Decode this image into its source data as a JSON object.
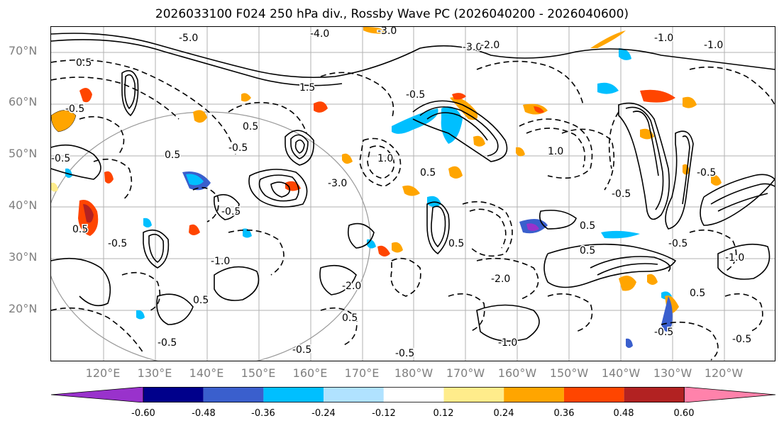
{
  "title": "2026033100 F024 250 hPa div., Rossby Wave PC (2026040200 - 2026040600)",
  "lat_labels": [
    "70°N",
    "60°N",
    "50°N",
    "40°N",
    "30°N",
    "20°N"
  ],
  "lon_labels": [
    "120°E",
    "130°E",
    "140°E",
    "150°E",
    "160°E",
    "170°E",
    "180°W",
    "170°W",
    "160°W",
    "150°W",
    "140°W",
    "130°W",
    "120°W"
  ],
  "contour_labels": [
    "-5.0",
    "-4.0",
    "-3.0",
    "-3.0",
    "-2.0",
    "-1.0",
    "0.5",
    "-0.5",
    "1.5",
    "-0.5",
    "0.5",
    "-0.5",
    "1.0",
    "0.5",
    "-3.0",
    "0.5",
    "1.0",
    "-0.5",
    "0.5",
    "-0.5",
    "-1.0",
    "-2.0",
    "0.5",
    "-0.5",
    "-0.5",
    "-1.0",
    "-0.5",
    "0.5",
    "-0.5",
    "0.5",
    "-0.5",
    "-0.5",
    "-2.0",
    "0.5",
    "-0.5",
    "0.5",
    "-1.0",
    "-0.5",
    "-0.5",
    "-1.0",
    "0.5"
  ],
  "colorbar": {
    "colors": [
      "#9932cc",
      "#00008b",
      "#3a5fcd",
      "#00bfff",
      "#b0e2ff",
      "#ffffff",
      "#ffec8b",
      "#ffa500",
      "#ff4500",
      "#b22222",
      "#ff82ab"
    ],
    "ticks": [
      "-0.60",
      "-0.48",
      "-0.36",
      "-0.24",
      "-0.12",
      "0.12",
      "0.24",
      "0.36",
      "0.48",
      "0.60"
    ]
  },
  "colors": {
    "contour_line": "#000000",
    "gridline": "#a0a0a0",
    "axis_label": "#7f7f7f"
  }
}
